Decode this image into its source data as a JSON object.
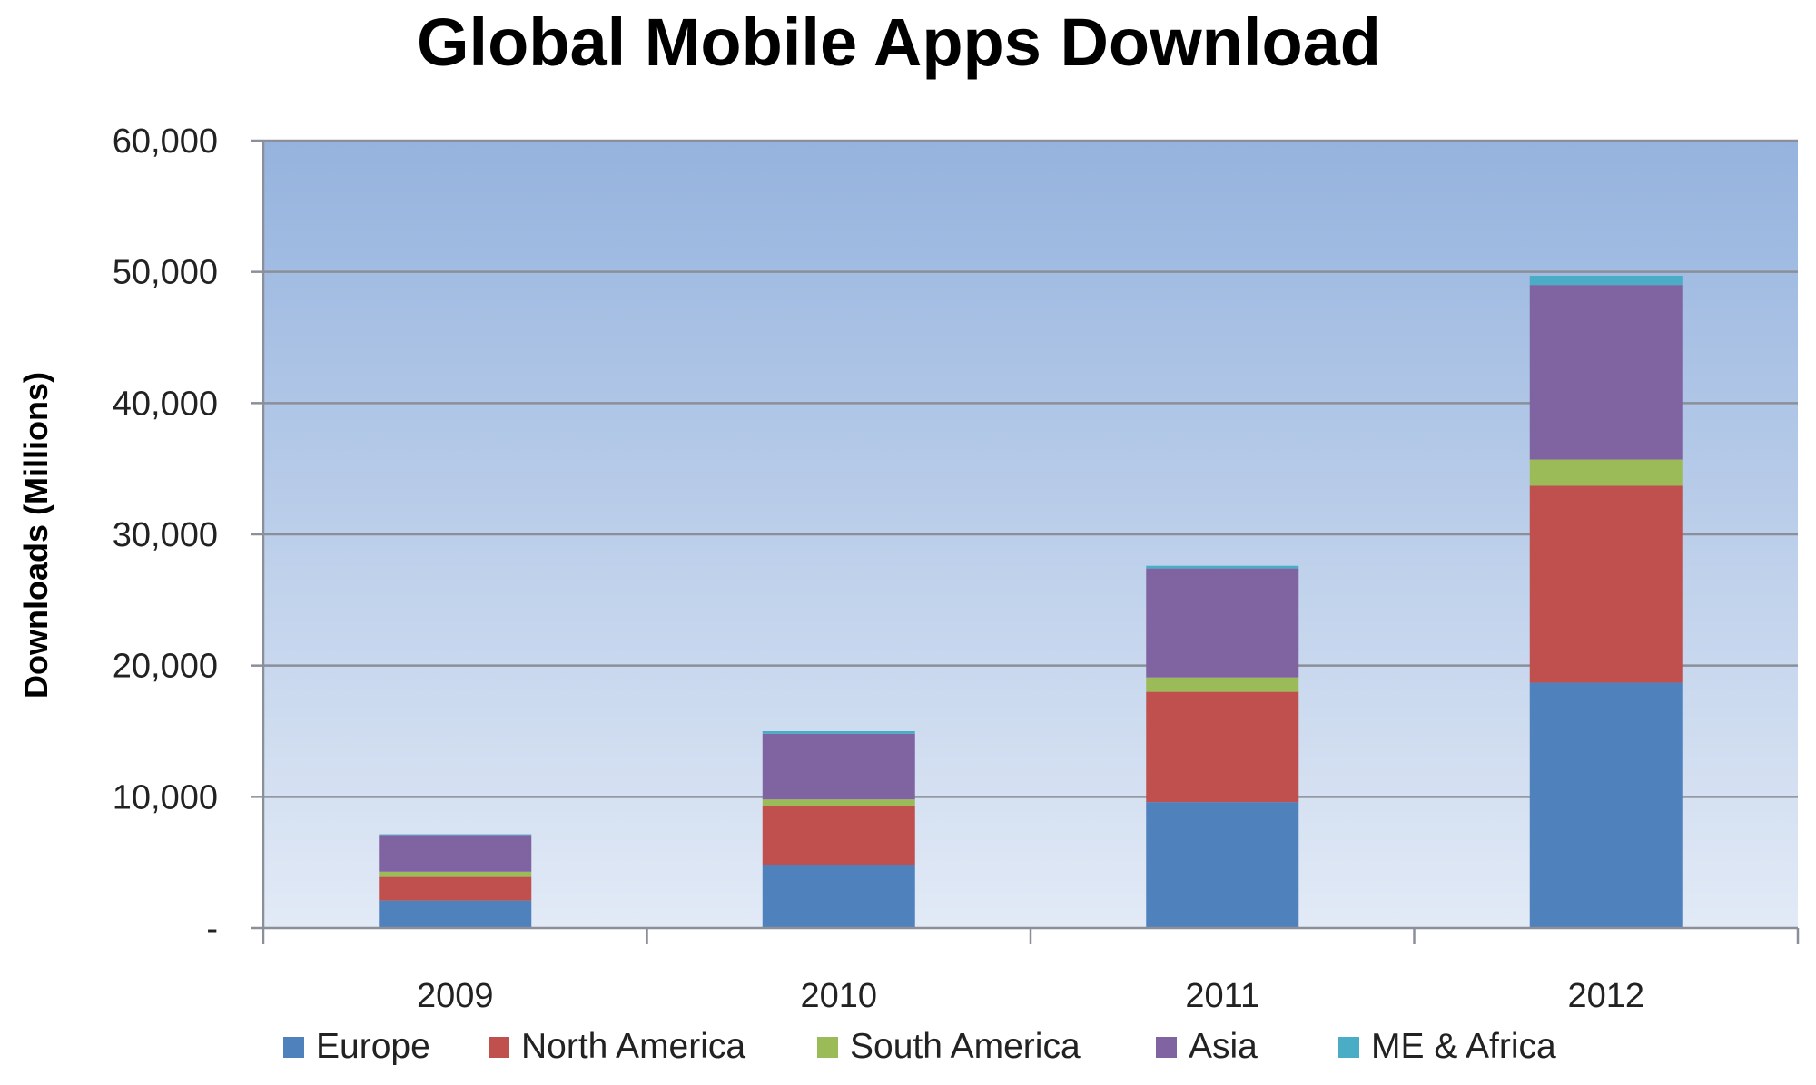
{
  "chart_data": {
    "type": "bar",
    "stacked": true,
    "title": "Global Mobile Apps Download",
    "xlabel": "",
    "ylabel": "Downloads (Millions)",
    "ylim": [
      0,
      60000
    ],
    "yticks": [
      {
        "value": 0,
        "label": "-"
      },
      {
        "value": 10000,
        "label": "10,000"
      },
      {
        "value": 20000,
        "label": "20,000"
      },
      {
        "value": 30000,
        "label": "30,000"
      },
      {
        "value": 40000,
        "label": "40,000"
      },
      {
        "value": 50000,
        "label": "50,000"
      },
      {
        "value": 60000,
        "label": "60,000"
      }
    ],
    "categories": [
      "2009",
      "2010",
      "2011",
      "2012"
    ],
    "series": [
      {
        "name": "Europe",
        "color": "#4F81BD",
        "values": [
          2100,
          4800,
          9600,
          18700
        ]
      },
      {
        "name": "North America",
        "color": "#C0504D",
        "values": [
          1800,
          4500,
          8400,
          15000
        ]
      },
      {
        "name": "South America",
        "color": "#9BBB59",
        "values": [
          400,
          500,
          1100,
          2000
        ]
      },
      {
        "name": "Asia",
        "color": "#8064A2",
        "values": [
          2800,
          5000,
          8300,
          13300
        ]
      },
      {
        "name": "ME & Africa",
        "color": "#4BACC6",
        "values": [
          50,
          200,
          200,
          700
        ]
      }
    ],
    "grid": true,
    "legend_position": "bottom",
    "plot_background": "gradient-blue"
  }
}
